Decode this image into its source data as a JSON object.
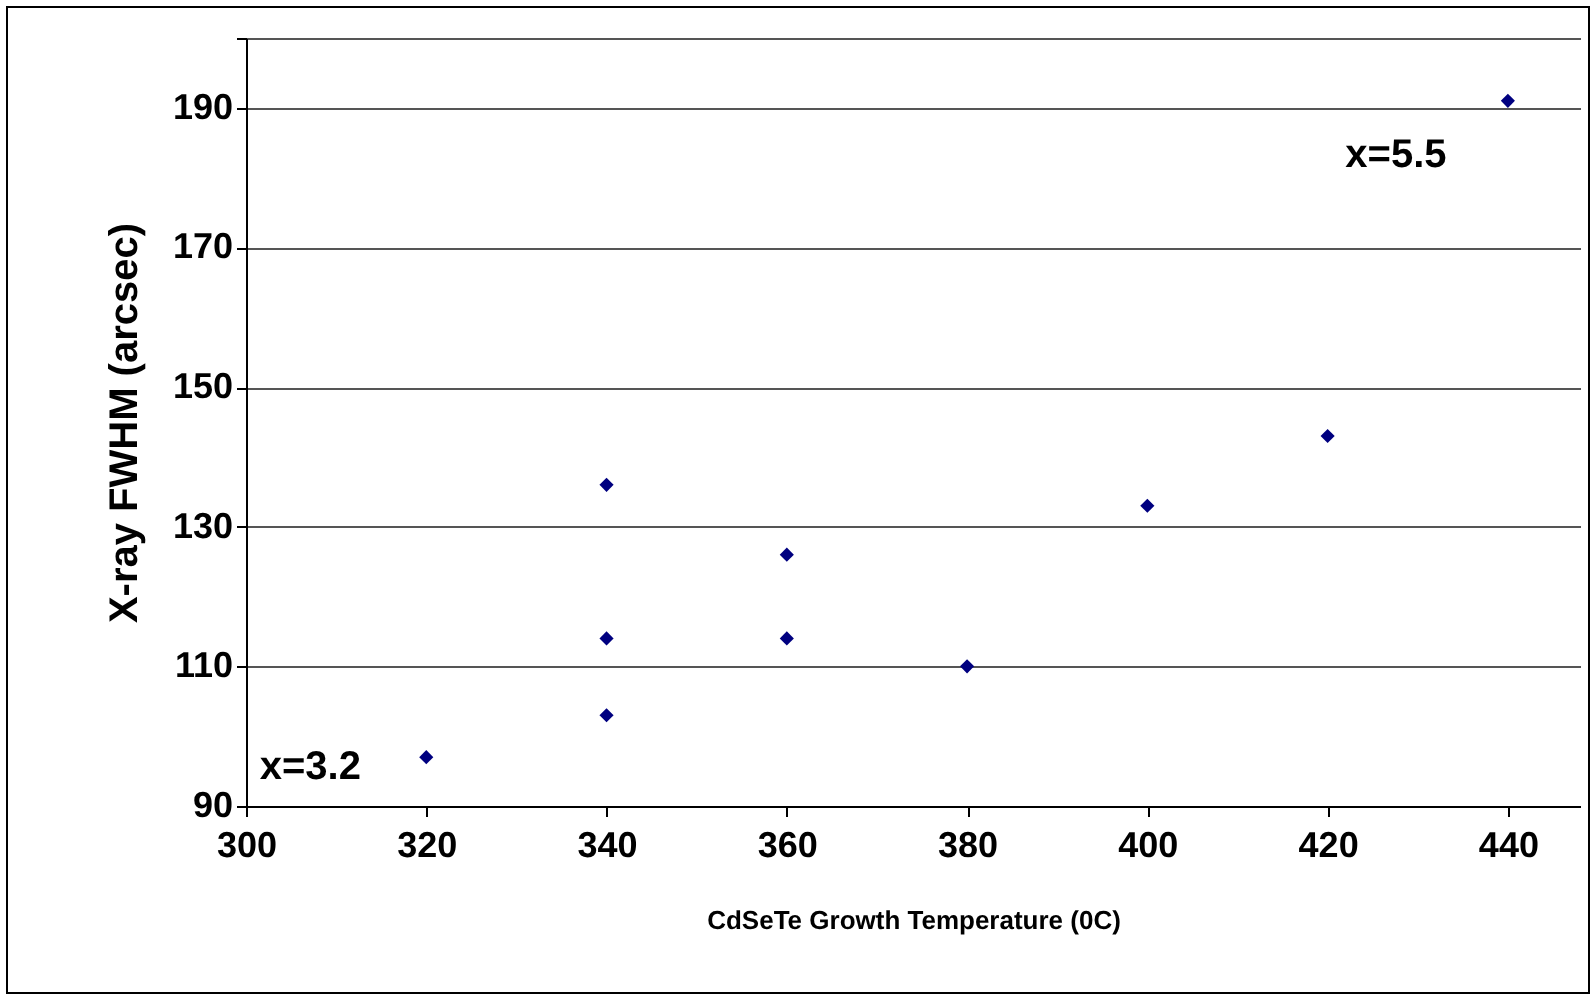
{
  "chart_data": {
    "type": "scatter",
    "xlabel": "CdSeTe Growth Temperature (0C)",
    "ylabel": "X-ray FWHM (arcsec)",
    "x": [
      320,
      340,
      340,
      340,
      360,
      360,
      380,
      400,
      420,
      440
    ],
    "series": [
      {
        "color": "#000080",
        "values": [
          97,
          136,
          114,
          103,
          126,
          114,
          110,
          133,
          143,
          191
        ]
      }
    ],
    "marker": "diamond",
    "grid": "y",
    "xlim": [
      300,
      448
    ],
    "xticks": [
      300,
      320,
      340,
      360,
      380,
      400,
      420,
      440
    ],
    "ylim": [
      90,
      200
    ],
    "yticks": [
      90,
      110,
      130,
      150,
      170,
      190,
      {
        "value": 200,
        "label": null
      }
    ],
    "annotations": [
      {
        "text": "x=3.2",
        "x": 320,
        "y": 97
      },
      {
        "text": "x=5.5",
        "x": 440,
        "y": 191
      }
    ]
  }
}
